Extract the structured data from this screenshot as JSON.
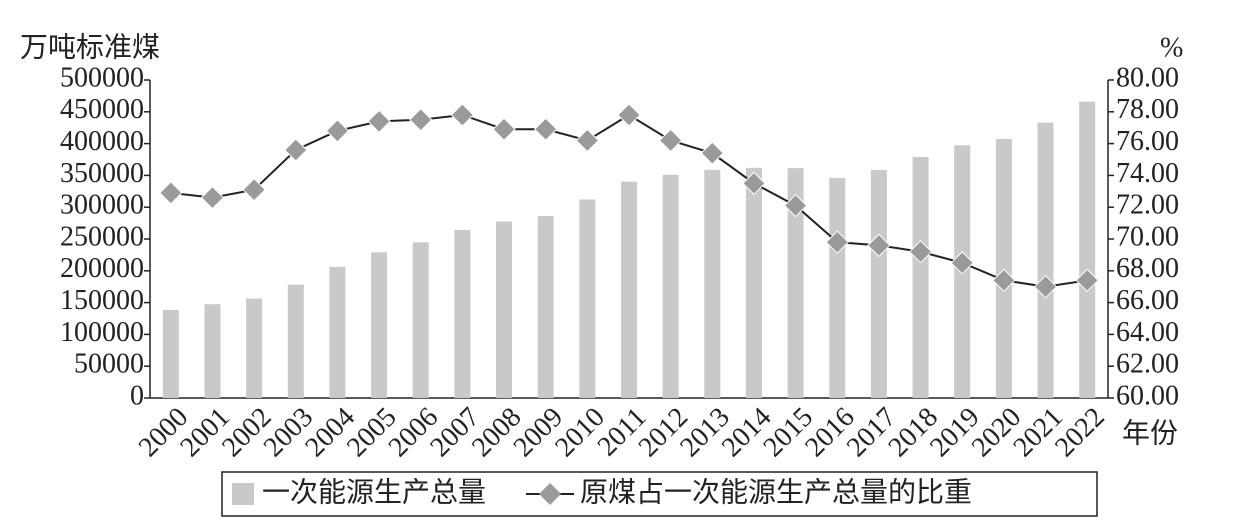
{
  "chart_data": {
    "type": "bar_line",
    "categories": [
      "2000",
      "2001",
      "2002",
      "2003",
      "2004",
      "2005",
      "2006",
      "2007",
      "2008",
      "2009",
      "2010",
      "2011",
      "2012",
      "2013",
      "2014",
      "2015",
      "2016",
      "2017",
      "2018",
      "2019",
      "2020",
      "2021",
      "2022"
    ],
    "series": [
      {
        "name": "一次能源生产总量",
        "type": "bar",
        "color": "#c9c9c9",
        "values": [
          138570,
          147425,
          156277,
          178299,
          206108,
          229037,
          244763,
          264173,
          277419,
          286092,
          312125,
          340178,
          351041,
          358784,
          361866,
          361476,
          346037,
          358500,
          378859,
          397317,
          407295,
          433000,
          466000
        ]
      },
      {
        "name": "原煤占一次能源生产总量的比重",
        "type": "line",
        "axis": "y2",
        "color": "#222222",
        "marker_color": "#9a9a9a",
        "values": [
          72.9,
          72.6,
          73.1,
          75.6,
          76.8,
          77.4,
          77.5,
          77.8,
          76.9,
          76.9,
          76.2,
          77.8,
          76.2,
          75.4,
          73.5,
          72.1,
          69.8,
          69.6,
          69.2,
          68.5,
          67.4,
          67.0,
          67.4
        ]
      }
    ],
    "y_label": "万吨标准煤",
    "y2_label": "%",
    "x_label": "年份",
    "ylim": [
      0,
      500000
    ],
    "yticks": [
      0,
      50000,
      100000,
      150000,
      200000,
      250000,
      300000,
      350000,
      400000,
      450000,
      500000
    ],
    "y2lim": [
      60,
      80
    ],
    "y2ticks": [
      {
        "value": 60,
        "label": "60.00"
      },
      {
        "value": 62,
        "label": "62.00"
      },
      {
        "value": 64,
        "label": "64.00"
      },
      {
        "value": 66,
        "label": "66.00"
      },
      {
        "value": 68,
        "label": "68.00"
      },
      {
        "value": 70,
        "label": "70.00"
      },
      {
        "value": 72,
        "label": "72.00"
      },
      {
        "value": 74,
        "label": "74.00"
      },
      {
        "value": 76,
        "label": "76.00"
      },
      {
        "value": 78,
        "label": "78.00"
      },
      {
        "value": 80,
        "label": "80.00"
      }
    ],
    "legend": "bottom"
  }
}
